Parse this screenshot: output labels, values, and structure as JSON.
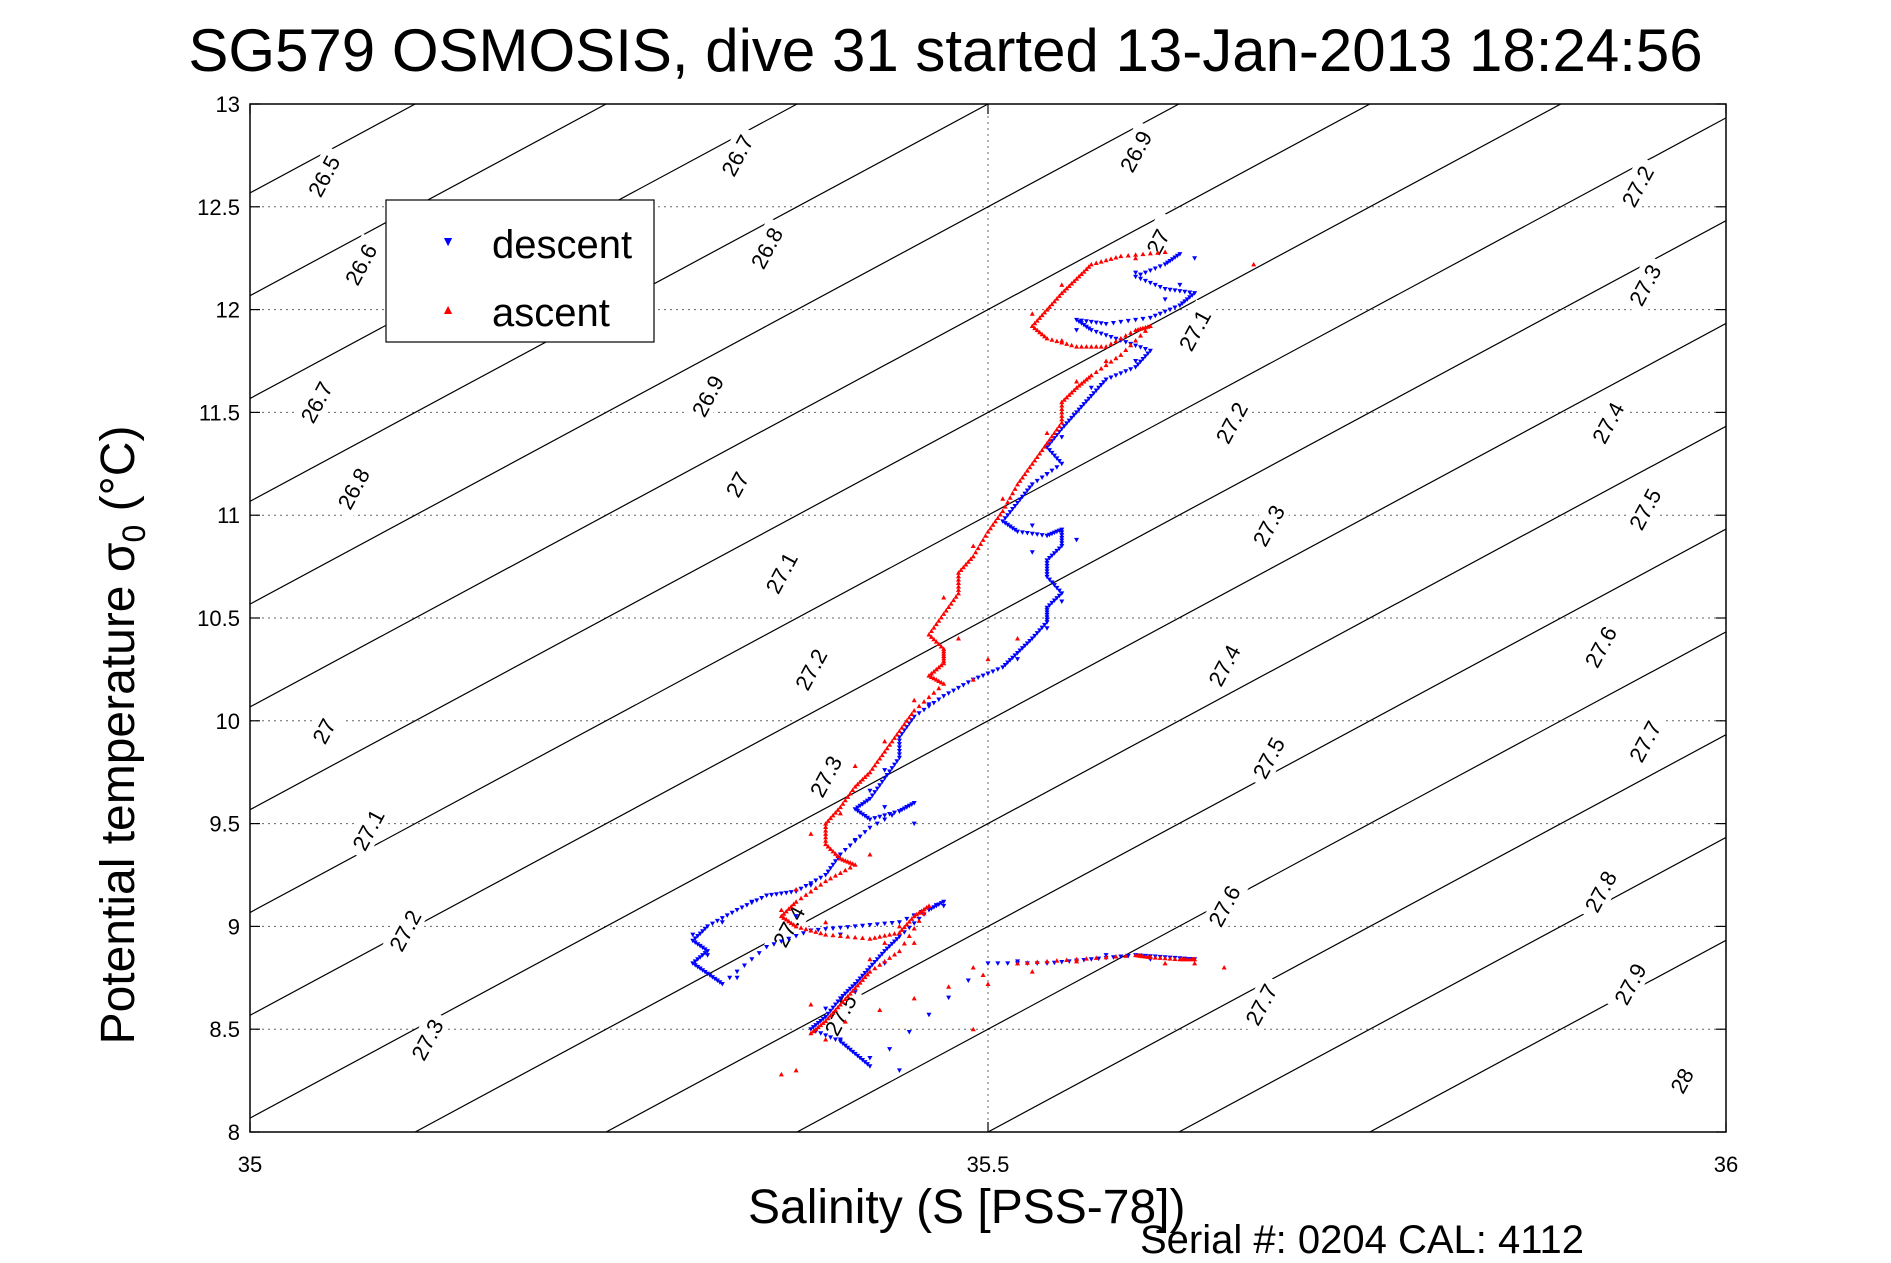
{
  "chart_data": {
    "type": "scatter",
    "title": "SG579 OSMOSIS, dive 31 started 13-Jan-2013 18:24:56",
    "xlabel": "Salinity (S [PSS-78])",
    "ylabel_main": "Potential temperature σ",
    "ylabel_sub": "0",
    "ylabel_unit": "(°C)",
    "footer": "Serial #: 0204  CAL: 4112",
    "xlim": [
      35,
      36
    ],
    "ylim": [
      8,
      13
    ],
    "xticks": [
      35,
      35.5,
      36
    ],
    "xtick_labels": [
      "35",
      "35.5",
      "36"
    ],
    "yticks": [
      8,
      8.5,
      9,
      9.5,
      10,
      10.5,
      11,
      11.5,
      12,
      12.5,
      13
    ],
    "ytick_labels": [
      "8",
      "8.5",
      "9",
      "9.5",
      "10",
      "10.5",
      "11",
      "11.5",
      "12",
      "12.5",
      "13"
    ],
    "grid": true,
    "legend_position": "top-left",
    "contours": {
      "levels": [
        26.5,
        26.6,
        26.7,
        26.8,
        26.9,
        27,
        27.1,
        27.2,
        27.3,
        27.4,
        27.5,
        27.6,
        27.7,
        27.8,
        27.9,
        28
      ],
      "labels": [
        {
          "text": "26.5",
          "x": 35.05,
          "y": 12.65
        },
        {
          "text": "26.6",
          "x": 35.075,
          "y": 12.22
        },
        {
          "text": "26.7",
          "x": 35.045,
          "y": 11.55
        },
        {
          "text": "26.8",
          "x": 35.07,
          "y": 11.13
        },
        {
          "text": "27",
          "x": 35.05,
          "y": 9.95
        },
        {
          "text": "27.1",
          "x": 35.08,
          "y": 9.47
        },
        {
          "text": "27.2",
          "x": 35.105,
          "y": 8.98
        },
        {
          "text": "27.3",
          "x": 35.12,
          "y": 8.45
        },
        {
          "text": "26.7",
          "x": 35.33,
          "y": 12.75
        },
        {
          "text": "26.8",
          "x": 35.35,
          "y": 12.3
        },
        {
          "text": "26.9",
          "x": 35.31,
          "y": 11.58
        },
        {
          "text": "27",
          "x": 35.33,
          "y": 11.15
        },
        {
          "text": "27.1",
          "x": 35.36,
          "y": 10.72
        },
        {
          "text": "27.2",
          "x": 35.38,
          "y": 10.25
        },
        {
          "text": "27.3",
          "x": 35.39,
          "y": 9.73
        },
        {
          "text": "27.4",
          "x": 35.365,
          "y": 9.0
        },
        {
          "text": "27.5",
          "x": 35.4,
          "y": 8.57
        },
        {
          "text": "26.9",
          "x": 35.6,
          "y": 12.77
        },
        {
          "text": "27",
          "x": 35.615,
          "y": 12.33
        },
        {
          "text": "27.1",
          "x": 35.64,
          "y": 11.9
        },
        {
          "text": "27.2",
          "x": 35.665,
          "y": 11.45
        },
        {
          "text": "27.3",
          "x": 35.69,
          "y": 10.95
        },
        {
          "text": "27.4",
          "x": 35.66,
          "y": 10.27
        },
        {
          "text": "27.5",
          "x": 35.69,
          "y": 9.82
        },
        {
          "text": "27.6",
          "x": 35.66,
          "y": 9.1
        },
        {
          "text": "27.7",
          "x": 35.685,
          "y": 8.62
        },
        {
          "text": "27.2",
          "x": 35.94,
          "y": 12.6
        },
        {
          "text": "27.3",
          "x": 35.945,
          "y": 12.12
        },
        {
          "text": "27.4",
          "x": 35.92,
          "y": 11.45
        },
        {
          "text": "27.5",
          "x": 35.945,
          "y": 11.03
        },
        {
          "text": "27.6",
          "x": 35.915,
          "y": 10.36
        },
        {
          "text": "27.7",
          "x": 35.945,
          "y": 9.9
        },
        {
          "text": "27.8",
          "x": 35.915,
          "y": 9.17
        },
        {
          "text": "27.9",
          "x": 35.935,
          "y": 8.72
        },
        {
          "text": "28",
          "x": 35.97,
          "y": 8.25
        }
      ]
    },
    "series": [
      {
        "name": "descent",
        "color": "#0000ff",
        "marker": "triangle-down",
        "path": [
          [
            35.63,
            12.27
          ],
          [
            35.62,
            12.22
          ],
          [
            35.6,
            12.16
          ],
          [
            35.62,
            12.1
          ],
          [
            35.64,
            12.08
          ],
          [
            35.63,
            12.02
          ],
          [
            35.61,
            11.96
          ],
          [
            35.58,
            11.93
          ],
          [
            35.56,
            11.95
          ],
          [
            35.57,
            11.9
          ],
          [
            35.59,
            11.85
          ],
          [
            35.61,
            11.8
          ],
          [
            35.6,
            11.72
          ],
          [
            35.58,
            11.66
          ],
          [
            35.57,
            11.58
          ],
          [
            35.56,
            11.5
          ],
          [
            35.55,
            11.42
          ],
          [
            35.54,
            11.33
          ],
          [
            35.55,
            11.25
          ],
          [
            35.53,
            11.15
          ],
          [
            35.52,
            11.06
          ],
          [
            35.51,
            10.97
          ],
          [
            35.52,
            10.92
          ],
          [
            35.54,
            10.9
          ],
          [
            35.55,
            10.93
          ],
          [
            35.55,
            10.85
          ],
          [
            35.54,
            10.78
          ],
          [
            35.54,
            10.7
          ],
          [
            35.55,
            10.62
          ],
          [
            35.54,
            10.55
          ],
          [
            35.54,
            10.48
          ],
          [
            35.53,
            10.4
          ],
          [
            35.52,
            10.33
          ],
          [
            35.51,
            10.26
          ],
          [
            35.49,
            10.2
          ],
          [
            35.47,
            10.12
          ],
          [
            35.45,
            10.02
          ],
          [
            35.44,
            9.92
          ],
          [
            35.44,
            9.82
          ],
          [
            35.43,
            9.72
          ],
          [
            35.42,
            9.62
          ],
          [
            35.41,
            9.57
          ],
          [
            35.42,
            9.52
          ],
          [
            35.44,
            9.56
          ],
          [
            35.45,
            9.6
          ],
          [
            35.42,
            9.48
          ],
          [
            35.4,
            9.35
          ],
          [
            35.39,
            9.25
          ],
          [
            35.37,
            9.17
          ],
          [
            35.35,
            9.15
          ],
          [
            35.33,
            9.08
          ],
          [
            35.31,
            9.0
          ],
          [
            35.3,
            8.93
          ],
          [
            35.31,
            8.88
          ],
          [
            35.3,
            8.82
          ],
          [
            35.31,
            8.77
          ],
          [
            35.32,
            8.72
          ],
          [
            35.35,
            8.9
          ],
          [
            35.38,
            8.98
          ],
          [
            35.41,
            9.0
          ],
          [
            35.44,
            9.02
          ],
          [
            35.47,
            9.12
          ],
          [
            35.46,
            9.08
          ],
          [
            35.44,
            8.95
          ],
          [
            35.43,
            8.88
          ],
          [
            35.42,
            8.8
          ],
          [
            35.41,
            8.72
          ],
          [
            35.4,
            8.65
          ],
          [
            35.39,
            8.56
          ],
          [
            35.38,
            8.5
          ],
          [
            35.4,
            8.44
          ],
          [
            35.41,
            8.38
          ],
          [
            35.42,
            8.32
          ],
          [
            35.5,
            8.82
          ],
          [
            35.54,
            8.82
          ],
          [
            35.57,
            8.84
          ],
          [
            35.6,
            8.86
          ],
          [
            35.62,
            8.85
          ],
          [
            35.64,
            8.84
          ]
        ],
        "scatter": [
          [
            35.64,
            12.25
          ],
          [
            35.6,
            12.18
          ],
          [
            35.63,
            12.12
          ],
          [
            35.62,
            12.05
          ],
          [
            35.56,
            11.9
          ],
          [
            35.6,
            11.75
          ],
          [
            35.57,
            11.62
          ],
          [
            35.55,
            11.38
          ],
          [
            35.54,
            11.2
          ],
          [
            35.53,
            10.95
          ],
          [
            35.56,
            10.88
          ],
          [
            35.53,
            10.82
          ],
          [
            35.55,
            10.58
          ],
          [
            35.54,
            10.45
          ],
          [
            35.52,
            10.3
          ],
          [
            35.46,
            10.08
          ],
          [
            35.43,
            9.76
          ],
          [
            35.42,
            9.66
          ],
          [
            35.43,
            9.58
          ],
          [
            35.45,
            9.5
          ],
          [
            35.41,
            9.42
          ],
          [
            35.38,
            9.2
          ],
          [
            35.34,
            9.12
          ],
          [
            35.32,
            9.02
          ],
          [
            35.3,
            8.96
          ],
          [
            35.31,
            8.86
          ],
          [
            35.33,
            8.75
          ],
          [
            35.37,
            9.05
          ],
          [
            35.4,
            8.96
          ],
          [
            35.45,
            9.05
          ],
          [
            35.47,
            9.1
          ],
          [
            35.43,
            8.82
          ],
          [
            35.41,
            8.68
          ],
          [
            35.39,
            8.6
          ],
          [
            35.4,
            8.45
          ],
          [
            35.42,
            8.36
          ],
          [
            35.44,
            8.3
          ],
          [
            35.52,
            8.83
          ],
          [
            35.58,
            8.86
          ],
          [
            35.61,
            8.84
          ]
        ]
      },
      {
        "name": "ascent",
        "color": "#ff0000",
        "marker": "triangle-up",
        "path": [
          [
            35.62,
            12.28
          ],
          [
            35.59,
            12.26
          ],
          [
            35.57,
            12.22
          ],
          [
            35.56,
            12.15
          ],
          [
            35.55,
            12.08
          ],
          [
            35.54,
            12.0
          ],
          [
            35.53,
            11.92
          ],
          [
            35.54,
            11.86
          ],
          [
            35.56,
            11.82
          ],
          [
            35.58,
            11.82
          ],
          [
            35.6,
            11.9
          ],
          [
            35.61,
            11.92
          ],
          [
            35.59,
            11.78
          ],
          [
            35.57,
            11.68
          ],
          [
            35.56,
            11.62
          ],
          [
            35.55,
            11.55
          ],
          [
            35.55,
            11.45
          ],
          [
            35.54,
            11.35
          ],
          [
            35.53,
            11.25
          ],
          [
            35.52,
            11.15
          ],
          [
            35.51,
            11.02
          ],
          [
            35.5,
            10.92
          ],
          [
            35.49,
            10.8
          ],
          [
            35.48,
            10.72
          ],
          [
            35.48,
            10.62
          ],
          [
            35.47,
            10.52
          ],
          [
            35.46,
            10.42
          ],
          [
            35.47,
            10.35
          ],
          [
            35.47,
            10.28
          ],
          [
            35.46,
            10.22
          ],
          [
            35.47,
            10.18
          ],
          [
            35.45,
            10.05
          ],
          [
            35.44,
            9.95
          ],
          [
            35.43,
            9.85
          ],
          [
            35.42,
            9.75
          ],
          [
            35.41,
            9.68
          ],
          [
            35.4,
            9.58
          ],
          [
            35.39,
            9.5
          ],
          [
            35.39,
            9.4
          ],
          [
            35.4,
            9.33
          ],
          [
            35.41,
            9.3
          ],
          [
            35.39,
            9.22
          ],
          [
            35.37,
            9.12
          ],
          [
            35.36,
            9.05
          ],
          [
            35.37,
            9.0
          ],
          [
            35.39,
            8.96
          ],
          [
            35.42,
            8.94
          ],
          [
            35.44,
            8.97
          ],
          [
            35.45,
            9.05
          ],
          [
            35.46,
            9.1
          ],
          [
            35.44,
            8.88
          ],
          [
            35.42,
            8.78
          ],
          [
            35.41,
            8.7
          ],
          [
            35.4,
            8.62
          ],
          [
            35.39,
            8.54
          ],
          [
            35.38,
            8.48
          ],
          [
            35.52,
            8.82
          ],
          [
            35.56,
            8.84
          ],
          [
            35.6,
            8.86
          ],
          [
            35.61,
            8.85
          ],
          [
            35.63,
            8.84
          ],
          [
            35.64,
            8.84
          ]
        ],
        "scatter": [
          [
            35.68,
            12.22
          ],
          [
            35.6,
            12.25
          ],
          [
            35.55,
            12.12
          ],
          [
            35.53,
            11.98
          ],
          [
            35.55,
            11.85
          ],
          [
            35.58,
            11.75
          ],
          [
            35.56,
            11.65
          ],
          [
            35.54,
            11.4
          ],
          [
            35.51,
            11.08
          ],
          [
            35.49,
            10.85
          ],
          [
            35.47,
            10.6
          ],
          [
            35.48,
            10.4
          ],
          [
            35.52,
            10.4
          ],
          [
            35.5,
            10.3
          ],
          [
            35.49,
            10.2
          ],
          [
            35.45,
            10.1
          ],
          [
            35.43,
            9.9
          ],
          [
            35.41,
            9.78
          ],
          [
            35.4,
            9.55
          ],
          [
            35.38,
            9.45
          ],
          [
            35.42,
            9.35
          ],
          [
            35.37,
            9.18
          ],
          [
            35.36,
            9.08
          ],
          [
            35.39,
            9.02
          ],
          [
            35.43,
            8.92
          ],
          [
            35.44,
            9.0
          ],
          [
            35.45,
            8.92
          ],
          [
            35.42,
            8.84
          ],
          [
            35.38,
            8.62
          ],
          [
            35.39,
            8.45
          ],
          [
            35.37,
            8.3
          ],
          [
            35.36,
            8.28
          ],
          [
            35.49,
            8.8
          ],
          [
            35.5,
            8.72
          ],
          [
            35.53,
            8.78
          ],
          [
            35.56,
            8.83
          ],
          [
            35.62,
            8.82
          ],
          [
            35.64,
            8.82
          ],
          [
            35.66,
            8.8
          ],
          [
            35.49,
            8.5
          ]
        ]
      }
    ]
  }
}
